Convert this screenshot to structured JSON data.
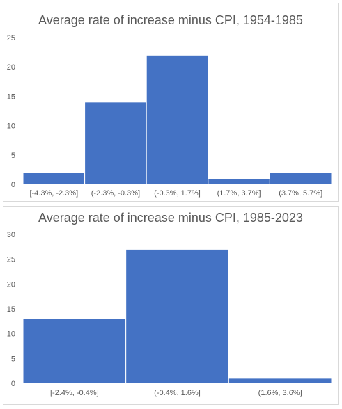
{
  "chart_data": [
    {
      "type": "bar",
      "title": "Average rate of increase minus CPI, 1954-1985",
      "categories": [
        "[-4.3%, -2.3%]",
        "(-2.3%, -0.3%]",
        "(-0.3%, 1.7%]",
        "(1.7%, 3.7%]",
        "(3.7%, 5.7%]"
      ],
      "values": [
        2,
        14,
        22,
        1,
        2
      ],
      "yticks": [
        0,
        5,
        10,
        15,
        20,
        25
      ],
      "ylim": [
        0,
        25
      ],
      "xlabel": "",
      "ylabel": "",
      "grid": false,
      "bar_color": "#4472C4"
    },
    {
      "type": "bar",
      "title": "Average rate of increase minus CPI, 1985-2023",
      "categories": [
        "[-2.4%, -0.4%]",
        "(-0.4%, 1.6%]",
        "(1.6%, 3.6%]"
      ],
      "values": [
        13,
        27,
        1
      ],
      "yticks": [
        0,
        5,
        10,
        15,
        20,
        25,
        30
      ],
      "ylim": [
        0,
        30
      ],
      "xlabel": "",
      "ylabel": "",
      "grid": false,
      "bar_color": "#4472C4"
    }
  ]
}
